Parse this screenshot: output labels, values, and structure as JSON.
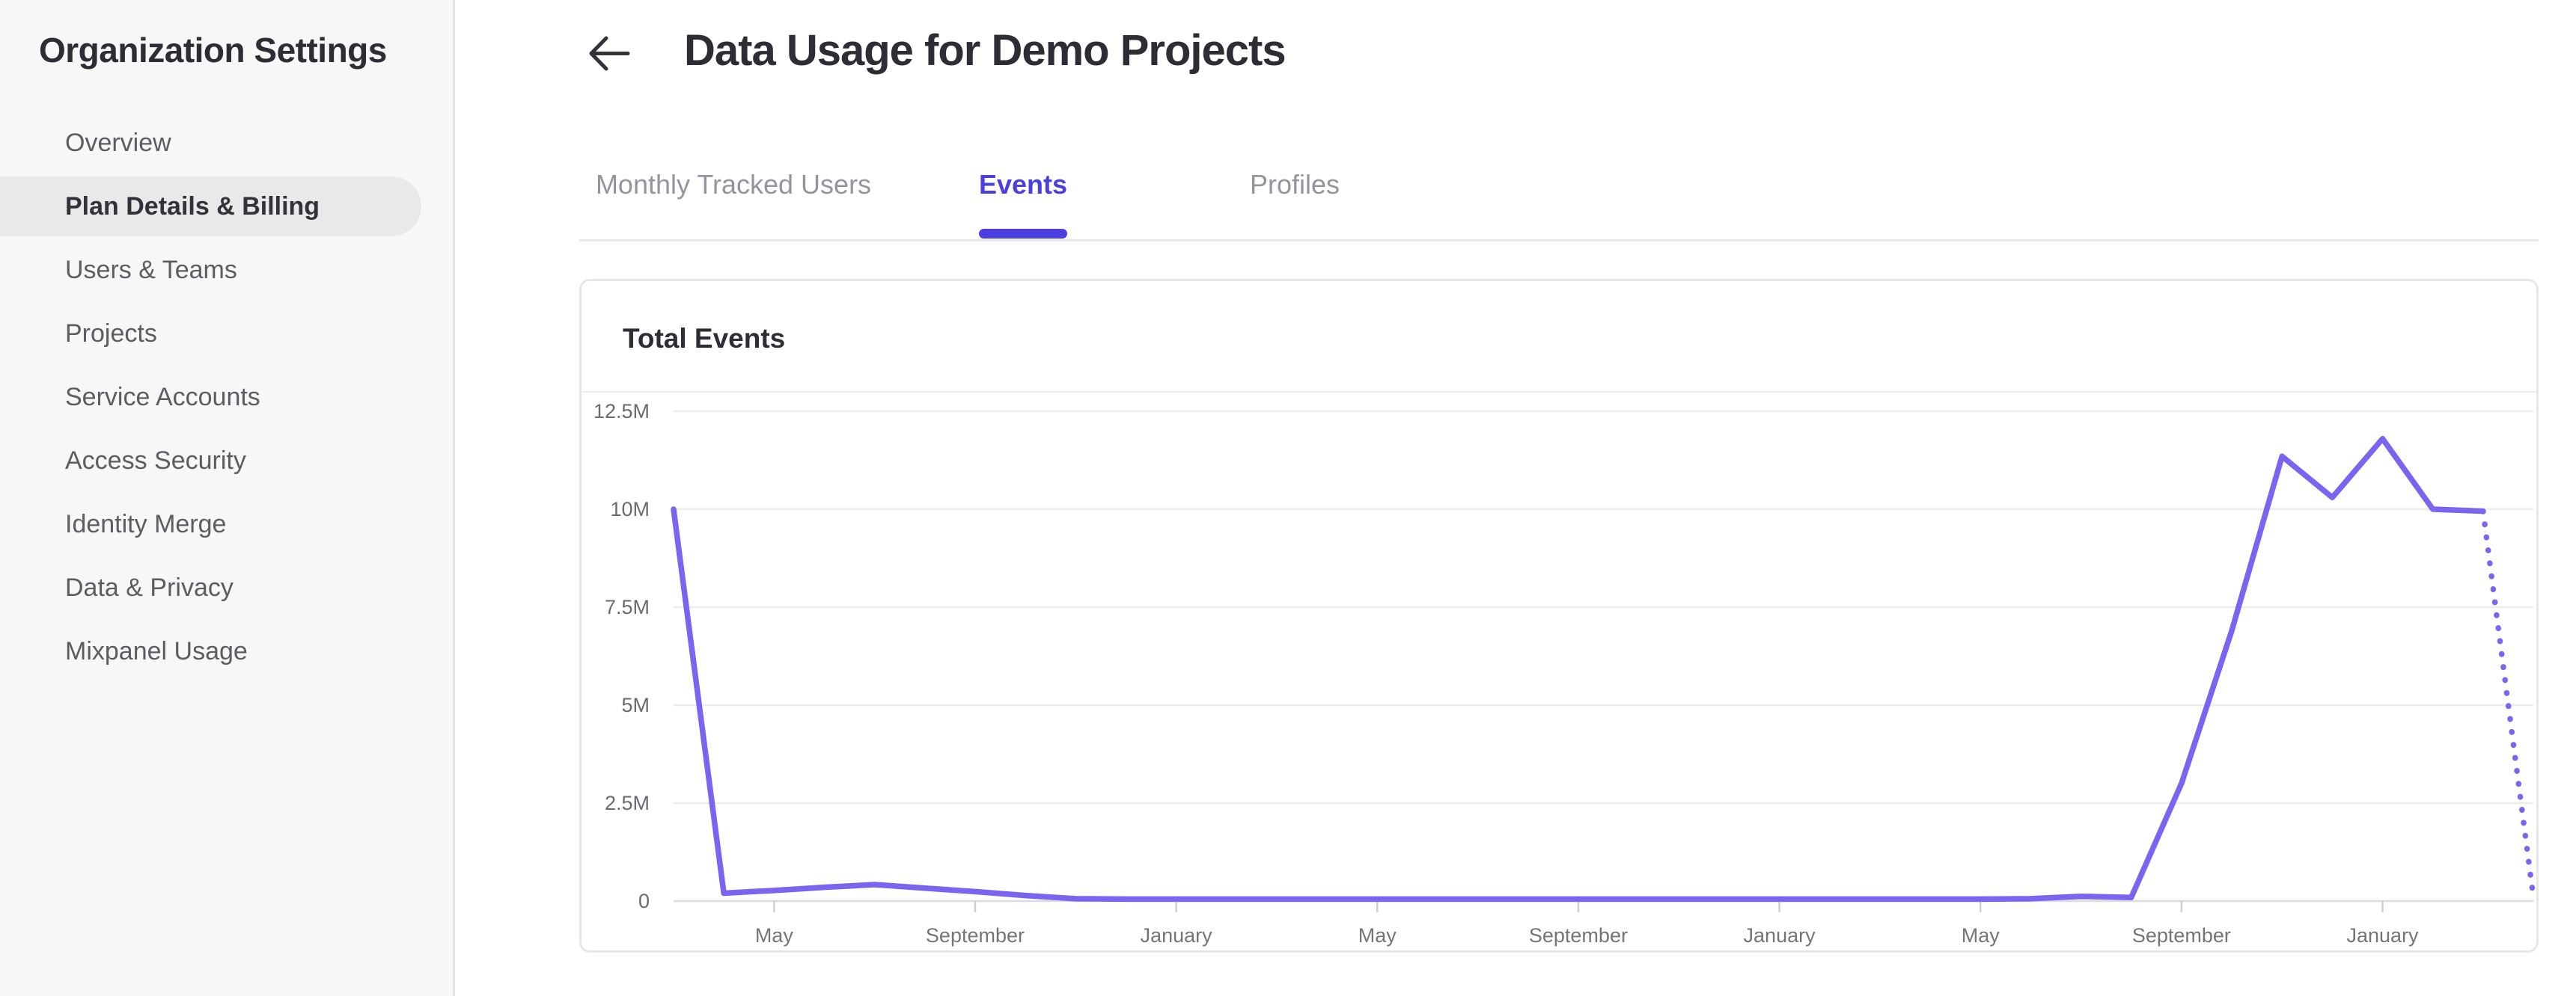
{
  "app": {
    "accent_color": "#4c3fe0",
    "line_color": "#7b64f0"
  },
  "sidebar": {
    "title": "Organization Settings",
    "items": [
      {
        "label": "Overview",
        "selected": false
      },
      {
        "label": "Plan Details & Billing",
        "selected": true
      },
      {
        "label": "Users & Teams",
        "selected": false
      },
      {
        "label": "Projects",
        "selected": false
      },
      {
        "label": "Service Accounts",
        "selected": false
      },
      {
        "label": "Access Security",
        "selected": false
      },
      {
        "label": "Identity Merge",
        "selected": false
      },
      {
        "label": "Data & Privacy",
        "selected": false
      },
      {
        "label": "Mixpanel Usage",
        "selected": false
      }
    ]
  },
  "header": {
    "back_icon": "left-arrow",
    "title": "Data Usage for Demo Projects"
  },
  "tabs": [
    {
      "label": "Monthly Tracked Users",
      "active": false
    },
    {
      "label": "Events",
      "active": true
    },
    {
      "label": "Profiles",
      "active": false
    }
  ],
  "usage_card": {
    "title": "Total Events"
  },
  "chart_data": {
    "type": "line",
    "title": "Total Events",
    "grid": true,
    "legend": "none",
    "x_axis": {
      "tick_labels": [
        "May",
        "September",
        "January",
        "May",
        "September",
        "January",
        "May",
        "September",
        "January"
      ],
      "tick_point_indices": [
        2,
        6,
        10,
        14,
        18,
        22,
        26,
        30,
        34
      ],
      "num_points": 38,
      "point_interval": "month"
    },
    "y_axis": {
      "tick_labels": [
        "12.5M",
        "10M",
        "7.5M",
        "5M",
        "2.5M",
        "0"
      ],
      "tick_values_millions": [
        12.5,
        10,
        7.5,
        5,
        2.5,
        0
      ],
      "range_millions": [
        0,
        13.0
      ]
    },
    "series": [
      {
        "name": "Total Events",
        "color": "#7b64f0",
        "dotted_final_segments": 1,
        "values_millions": [
          10,
          0.2,
          0.27,
          0.35,
          0.42,
          0.33,
          0.24,
          0.14,
          0.06,
          0.05,
          0.05,
          0.05,
          0.05,
          0.05,
          0.05,
          0.05,
          0.05,
          0.05,
          0.05,
          0.05,
          0.05,
          0.05,
          0.05,
          0.05,
          0.05,
          0.05,
          0.05,
          0.06,
          0.12,
          0.09,
          3.0,
          6.9,
          11.35,
          10.3,
          11.8,
          10.0,
          9.95,
          0.1
        ]
      }
    ]
  }
}
